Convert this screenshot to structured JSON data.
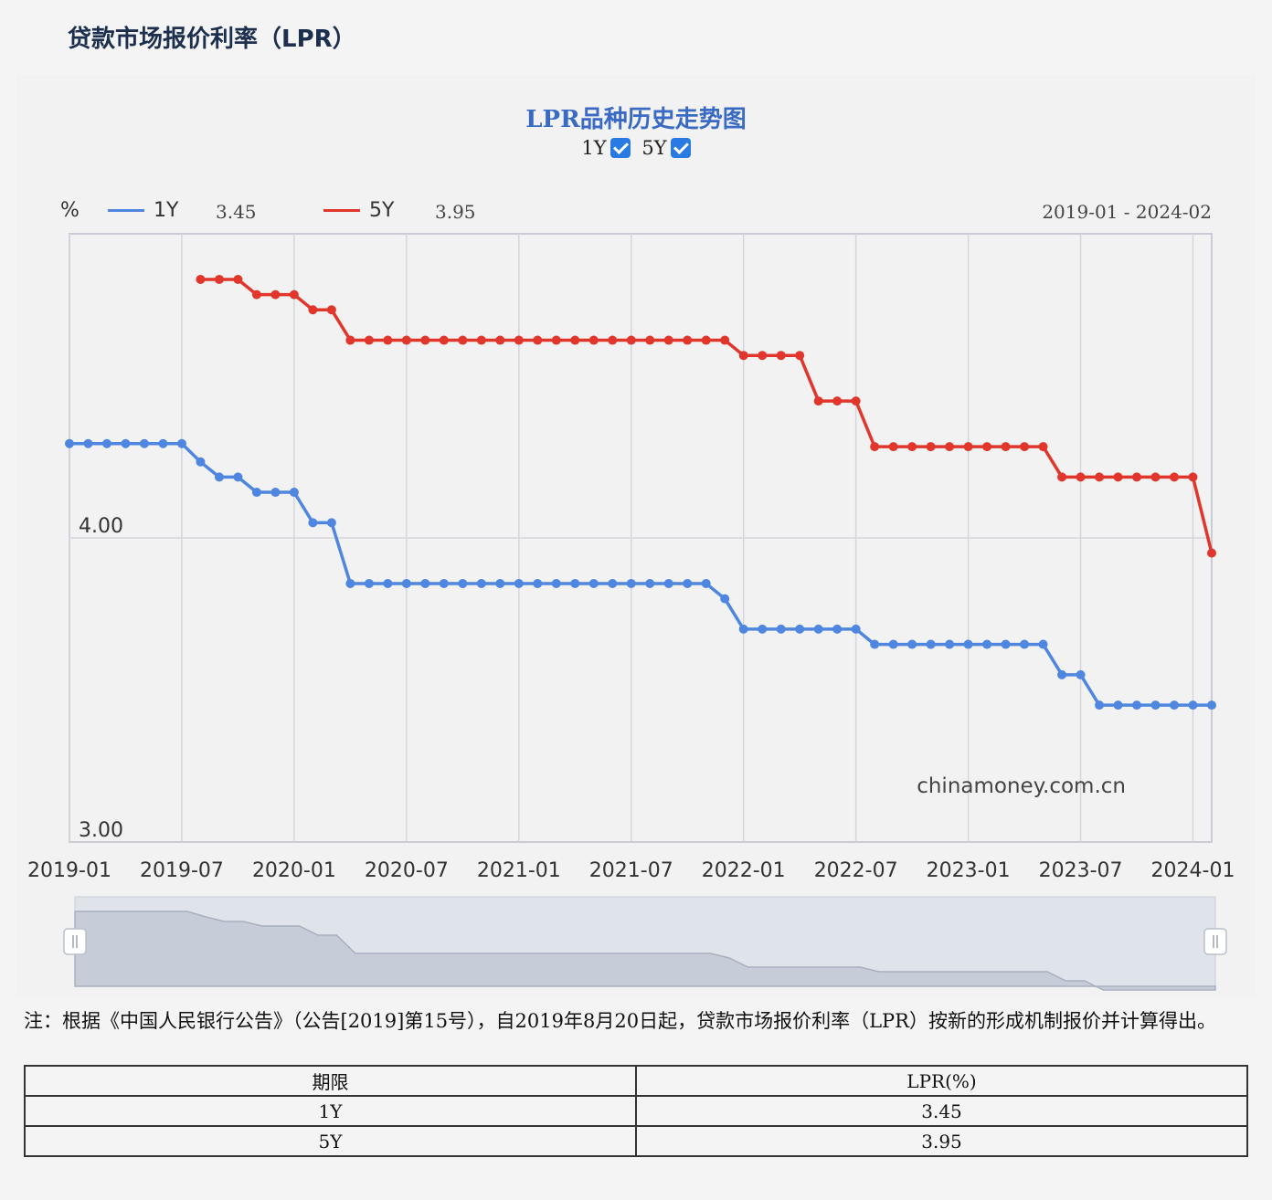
{
  "page": {
    "title": "贷款市场报价利率（LPR）"
  },
  "chart_header": {
    "title": "LPR品种历史走势图",
    "toggles": [
      {
        "label": "1Y",
        "checked": true
      },
      {
        "label": "5Y",
        "checked": true
      }
    ],
    "y_unit": "%",
    "legend": [
      {
        "name": "1Y",
        "value": "3.45",
        "color": "#4f86e0"
      },
      {
        "name": "5Y",
        "value": "3.95",
        "color": "#e0362b"
      }
    ],
    "range_label": "2019-01 - 2024-02",
    "watermark": "chinamoney.com.cn"
  },
  "chart_data": {
    "type": "line",
    "title": "LPR品种历史走势图",
    "xlabel": "",
    "ylabel": "%",
    "x": [
      "2019-01",
      "2019-02",
      "2019-03",
      "2019-04",
      "2019-05",
      "2019-06",
      "2019-07",
      "2019-08",
      "2019-09",
      "2019-10",
      "2019-11",
      "2019-12",
      "2020-01",
      "2020-02",
      "2020-03",
      "2020-04",
      "2020-05",
      "2020-06",
      "2020-07",
      "2020-08",
      "2020-09",
      "2020-10",
      "2020-11",
      "2020-12",
      "2021-01",
      "2021-02",
      "2021-03",
      "2021-04",
      "2021-05",
      "2021-06",
      "2021-07",
      "2021-08",
      "2021-09",
      "2021-10",
      "2021-11",
      "2021-12",
      "2022-01",
      "2022-02",
      "2022-03",
      "2022-04",
      "2022-05",
      "2022-06",
      "2022-07",
      "2022-08",
      "2022-09",
      "2022-10",
      "2022-11",
      "2022-12",
      "2023-01",
      "2023-02",
      "2023-03",
      "2023-04",
      "2023-05",
      "2023-06",
      "2023-07",
      "2023-08",
      "2023-09",
      "2023-10",
      "2023-11",
      "2023-12",
      "2024-01",
      "2024-02"
    ],
    "x_ticks": [
      "2019-01",
      "2019-07",
      "2020-01",
      "2020-07",
      "2021-01",
      "2021-07",
      "2022-01",
      "2022-07",
      "2023-01",
      "2023-07",
      "2024-01"
    ],
    "y_ticks": [
      "3.00",
      "4.00"
    ],
    "ylim": [
      3.0,
      5.0
    ],
    "grid": true,
    "series": [
      {
        "name": "1Y",
        "color": "#4f86e0",
        "values": [
          4.31,
          4.31,
          4.31,
          4.31,
          4.31,
          4.31,
          4.31,
          4.25,
          4.2,
          4.2,
          4.15,
          4.15,
          4.15,
          4.05,
          4.05,
          3.85,
          3.85,
          3.85,
          3.85,
          3.85,
          3.85,
          3.85,
          3.85,
          3.85,
          3.85,
          3.85,
          3.85,
          3.85,
          3.85,
          3.85,
          3.85,
          3.85,
          3.85,
          3.85,
          3.85,
          3.8,
          3.7,
          3.7,
          3.7,
          3.7,
          3.7,
          3.7,
          3.7,
          3.65,
          3.65,
          3.65,
          3.65,
          3.65,
          3.65,
          3.65,
          3.65,
          3.65,
          3.65,
          3.55,
          3.55,
          3.45,
          3.45,
          3.45,
          3.45,
          3.45,
          3.45,
          3.45
        ]
      },
      {
        "name": "5Y",
        "color": "#e0362b",
        "values": [
          null,
          null,
          null,
          null,
          null,
          null,
          null,
          4.85,
          4.85,
          4.85,
          4.8,
          4.8,
          4.8,
          4.75,
          4.75,
          4.65,
          4.65,
          4.65,
          4.65,
          4.65,
          4.65,
          4.65,
          4.65,
          4.65,
          4.65,
          4.65,
          4.65,
          4.65,
          4.65,
          4.65,
          4.65,
          4.65,
          4.65,
          4.65,
          4.65,
          4.65,
          4.6,
          4.6,
          4.6,
          4.6,
          4.45,
          4.45,
          4.45,
          4.3,
          4.3,
          4.3,
          4.3,
          4.3,
          4.3,
          4.3,
          4.3,
          4.3,
          4.3,
          4.2,
          4.2,
          4.2,
          4.2,
          4.2,
          4.2,
          4.2,
          4.2,
          3.95
        ]
      }
    ]
  },
  "note": "注：根据《中国人民银行公告》（公告[2019]第15号），自2019年8月20日起，贷款市场报价利率（LPR）按新的形成机制报价并计算得出。",
  "table": {
    "headers": [
      "期限",
      "LPR(%)"
    ],
    "rows": [
      [
        "1Y",
        "3.45"
      ],
      [
        "5Y",
        "3.95"
      ]
    ]
  }
}
